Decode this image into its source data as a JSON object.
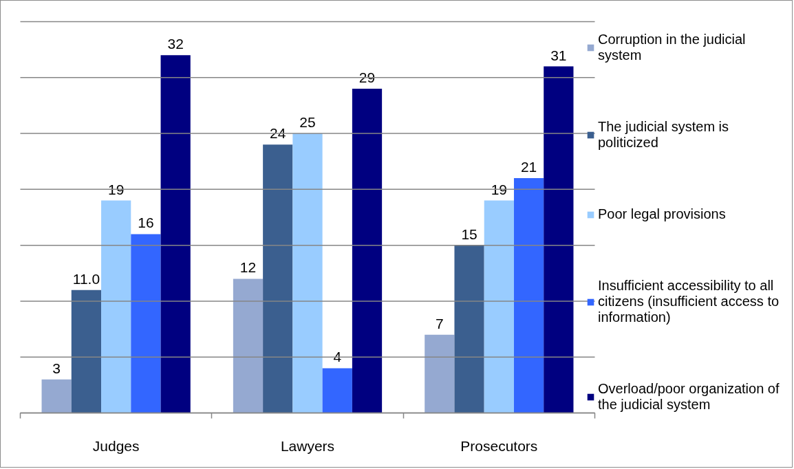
{
  "chart_data": {
    "type": "bar",
    "categories": [
      "Judges",
      "Lawyers",
      "Prosecutors"
    ],
    "series": [
      {
        "name": "Corruption in the judicial system",
        "color": "#95a9d1",
        "values": [
          3,
          12,
          7
        ],
        "value_labels": [
          "3",
          "12",
          "7"
        ]
      },
      {
        "name": "The judicial system is politicized",
        "color": "#3b5f8f",
        "values": [
          11.0,
          24,
          15
        ],
        "value_labels": [
          "11.0",
          "24",
          "15"
        ]
      },
      {
        "name": "Poor legal provisions",
        "color": "#99ccff",
        "values": [
          19,
          25,
          19
        ],
        "value_labels": [
          "19",
          "25",
          "19"
        ]
      },
      {
        "name": "Insufficient accessibility to all citizens (insufficient access to information)",
        "color": "#3366ff",
        "values": [
          16,
          4,
          21
        ],
        "value_labels": [
          "16",
          "4",
          "21"
        ]
      },
      {
        "name": "Overload/poor organization of the judicial system",
        "color": "#000080",
        "values": [
          32,
          29,
          31
        ],
        "value_labels": [
          "32",
          "29",
          "31"
        ]
      }
    ],
    "ylim": [
      0,
      35
    ],
    "yticks": [
      {
        "value": 0,
        "label": null
      },
      {
        "value": 5,
        "label": null
      },
      {
        "value": 10,
        "label": null
      },
      {
        "value": 15,
        "label": null
      },
      {
        "value": 20,
        "label": null
      },
      {
        "value": 25,
        "label": null
      },
      {
        "value": 30,
        "label": null
      },
      {
        "value": 35,
        "label": null
      }
    ],
    "grid": "y",
    "legend": "right",
    "tick_labels": "x"
  }
}
